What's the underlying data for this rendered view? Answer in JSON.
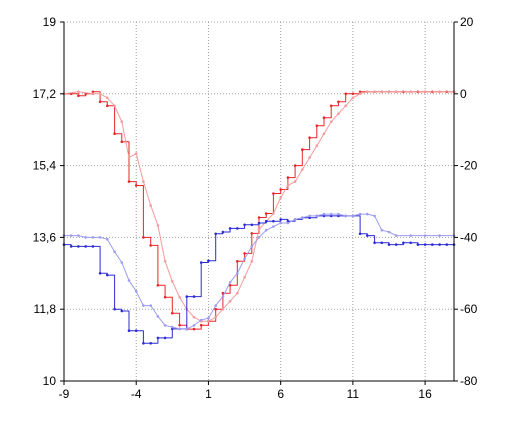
{
  "chart_data": {
    "type": "line",
    "title": "",
    "xlabel": "",
    "ylabel": "",
    "xlim": [
      -9,
      18
    ],
    "ylim_left": [
      10,
      19
    ],
    "ylim_right": [
      -80,
      20
    ],
    "grid": true,
    "x_ticks": [
      -9,
      -4,
      1,
      6,
      11,
      16
    ],
    "x_tick_labels": [
      "-9",
      "-4",
      "1",
      "6",
      "11",
      "16"
    ],
    "y_left_ticks": [
      10,
      11.8,
      13.6,
      15.4,
      17.2,
      19
    ],
    "y_left_tick_labels": [
      "10",
      "11,8",
      "13,6",
      "15,4",
      "17,2",
      "19"
    ],
    "y_right_ticks": [
      -80,
      -60,
      -40,
      -20,
      0,
      20
    ],
    "y_right_tick_labels": [
      "-80",
      "-60",
      "-40",
      "-20",
      "0",
      "20"
    ],
    "colors": {
      "red_dark": "#e8262a",
      "red_light": "#f49a9a",
      "blue_dark": "#2b2bd6",
      "blue_light": "#9c9cf0",
      "grid": "#a0a0a0",
      "axis": "#000000"
    },
    "series": [
      {
        "axis": "left",
        "color": "red_dark",
        "step": true,
        "x": [
          -9,
          -8.5,
          -8,
          -7.5,
          -7,
          -6.5,
          -6,
          -5.5,
          -5,
          -4.5,
          -4,
          -3.5,
          -3,
          -2.5,
          -2,
          -1.5,
          -1,
          -0.5,
          0,
          0.5,
          1,
          1.5,
          2,
          2.5,
          3,
          3.5,
          4,
          4.5,
          5,
          5.5,
          6,
          6.5,
          7,
          7.5,
          8,
          8.5,
          9,
          9.5,
          10,
          10.5,
          11,
          11.5,
          12,
          12.5,
          13,
          13.5,
          14,
          14.5,
          15,
          15.5,
          16,
          16.5,
          17,
          17.5,
          18
        ],
        "y": [
          17.2,
          17.2,
          17.15,
          17.2,
          17.25,
          17.0,
          16.9,
          16.2,
          16.0,
          15.0,
          14.9,
          13.6,
          13.4,
          12.4,
          12.1,
          11.7,
          11.4,
          11.3,
          11.3,
          11.4,
          11.5,
          11.8,
          12.2,
          12.4,
          13.0,
          13.2,
          13.7,
          14.1,
          14.2,
          14.7,
          14.8,
          15.1,
          15.4,
          15.8,
          16.1,
          16.4,
          16.6,
          16.9,
          17.0,
          17.2,
          17.2,
          17.25,
          17.25,
          17.25,
          17.25,
          17.25,
          17.25,
          17.25,
          17.25,
          17.25,
          17.25,
          17.25,
          17.25,
          17.25,
          17.25
        ]
      },
      {
        "axis": "left",
        "color": "red_light",
        "step": false,
        "x": [
          -9,
          -8,
          -7,
          -6.5,
          -6,
          -5.5,
          -5,
          -4.5,
          -4,
          -3.5,
          -3,
          -2.5,
          -2,
          -1.5,
          -1,
          -0.5,
          0,
          0.5,
          1,
          1.5,
          2,
          2.5,
          3,
          3.5,
          4,
          4.5,
          5,
          5.5,
          6,
          6.5,
          7,
          7.5,
          8,
          8.5,
          9,
          9.5,
          10,
          10.5,
          11,
          11.5,
          12,
          12.5,
          13,
          13.5,
          14,
          15,
          16,
          17,
          18
        ],
        "y": [
          17.2,
          17.25,
          17.2,
          17.2,
          17.1,
          16.9,
          16.5,
          15.6,
          15.7,
          15.0,
          14.4,
          13.9,
          13.0,
          12.5,
          12.1,
          11.8,
          11.6,
          11.5,
          11.5,
          11.6,
          11.8,
          12.0,
          12.2,
          12.6,
          13.0,
          13.8,
          14.0,
          14.2,
          14.6,
          14.9,
          15.0,
          15.3,
          15.6,
          15.9,
          16.2,
          16.5,
          16.7,
          16.9,
          17.1,
          17.2,
          17.25,
          17.25,
          17.25,
          17.25,
          17.25,
          17.25,
          17.25,
          17.25,
          17.25
        ]
      },
      {
        "axis": "right",
        "color": "blue_dark",
        "step": true,
        "x": [
          -9,
          -8.5,
          -8,
          -7.5,
          -7,
          -6.5,
          -6,
          -5.5,
          -5,
          -4.5,
          -4,
          -3.5,
          -3,
          -2.5,
          -2,
          -1.5,
          -1,
          -0.5,
          0,
          0.5,
          1,
          1.5,
          2,
          2.5,
          3,
          3.5,
          4,
          4.5,
          5,
          5.5,
          6,
          6.5,
          7,
          7.5,
          8,
          8.5,
          9,
          9.5,
          10,
          10.5,
          11,
          11.5,
          12,
          12.5,
          13,
          13.5,
          14,
          14.5,
          15,
          15.5,
          16,
          16.5,
          17,
          17.5,
          18
        ],
        "y": [
          -42,
          -42.5,
          -42.5,
          -42.5,
          -42.5,
          -50,
          -50.5,
          -60,
          -60.5,
          -66,
          -66,
          -69.5,
          -69.5,
          -68,
          -68,
          -65.5,
          -65.5,
          -56.5,
          -56.5,
          -47,
          -46.5,
          -39,
          -38.5,
          -37.5,
          -37.5,
          -36.5,
          -36.5,
          -36,
          -35.5,
          -35.5,
          -35,
          -35.5,
          -35,
          -34.5,
          -34.5,
          -34,
          -34,
          -34,
          -34,
          -34,
          -34,
          -39,
          -39.5,
          -41.5,
          -41.5,
          -42,
          -42,
          -41.5,
          -41.5,
          -42,
          -42,
          -42,
          -42,
          -42,
          -42
        ]
      },
      {
        "axis": "right",
        "color": "blue_light",
        "step": false,
        "x": [
          -9,
          -8.5,
          -8,
          -7.5,
          -7,
          -6.5,
          -6,
          -5.5,
          -5,
          -4.5,
          -4,
          -3.5,
          -3,
          -2.5,
          -2,
          -1.5,
          -1,
          -0.5,
          0,
          0.5,
          1,
          1.5,
          2,
          2.5,
          3,
          3.5,
          4,
          4.5,
          5,
          5.5,
          6,
          6.5,
          7,
          7.5,
          8,
          8.5,
          9,
          9.5,
          10,
          10.5,
          11,
          11.5,
          12,
          12.5,
          13,
          13.5,
          14,
          15,
          16,
          17,
          18
        ],
        "y": [
          -39.5,
          -39.5,
          -39.5,
          -40,
          -40,
          -40,
          -40.5,
          -44,
          -47,
          -52,
          -55,
          -59,
          -59,
          -62,
          -64.5,
          -65,
          -65.5,
          -65.5,
          -64.5,
          -63,
          -62.5,
          -59,
          -56.5,
          -52.5,
          -50,
          -46,
          -42.5,
          -40,
          -38,
          -37,
          -36,
          -36,
          -35,
          -34.5,
          -34,
          -34,
          -33.5,
          -33.5,
          -33.5,
          -34,
          -34,
          -33.5,
          -33.5,
          -34,
          -38,
          -38.5,
          -39.5,
          -39.5,
          -39.5,
          -39.5,
          -39.5
        ]
      }
    ]
  }
}
